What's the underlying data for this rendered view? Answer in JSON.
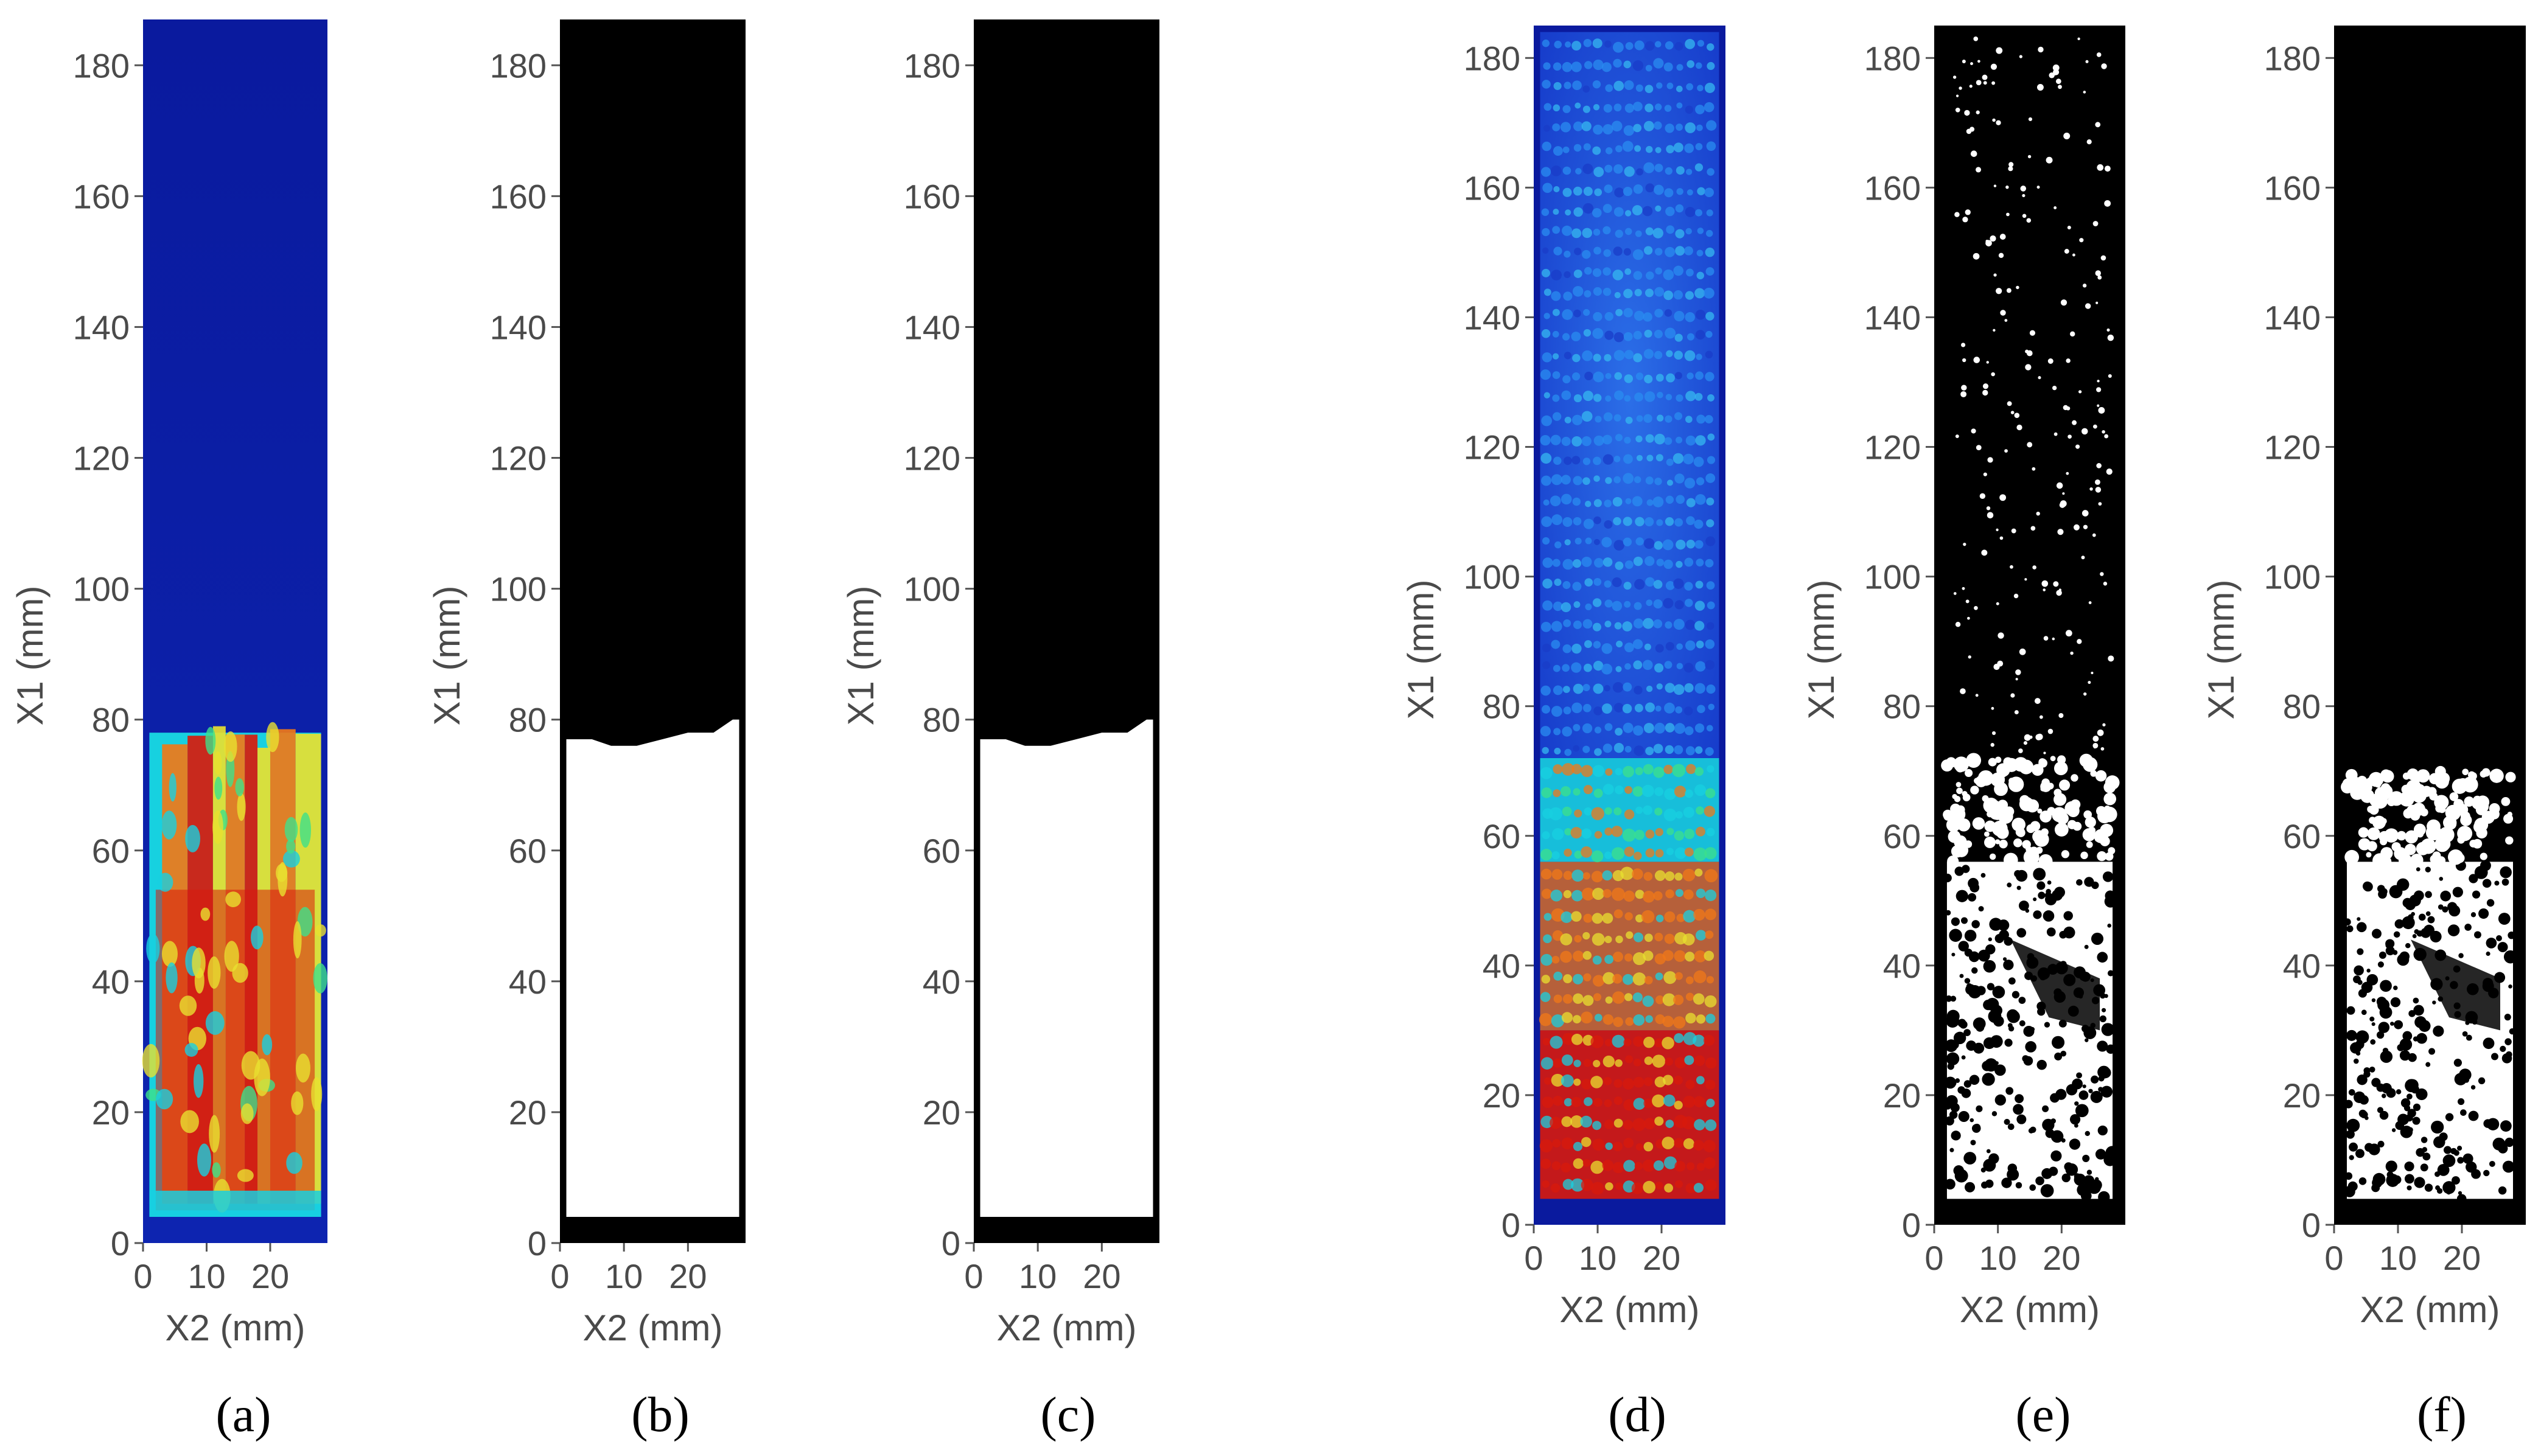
{
  "figure": {
    "panels": [
      {
        "id": "a",
        "caption": "(a)",
        "style": "heatmap"
      },
      {
        "id": "b",
        "caption": "(b)",
        "style": "binary"
      },
      {
        "id": "c",
        "caption": "(c)",
        "style": "binary"
      },
      {
        "id": "d",
        "caption": "(d)",
        "style": "heatmap"
      },
      {
        "id": "e",
        "caption": "(e)",
        "style": "binary"
      },
      {
        "id": "f",
        "caption": "(f)",
        "style": "binary"
      }
    ],
    "colors": {
      "background_blue": "#0a1a9e",
      "blue_mid": "#1f54e0",
      "cyan": "#18d0e0",
      "green": "#3ee08a",
      "yellow": "#e8e030",
      "orange": "#f07818",
      "red": "#d81a0c",
      "binary_bg": "#000000",
      "binary_fg": "#ffffff",
      "axis_text": "#4a4a4a"
    }
  },
  "chart_data": [
    {
      "type": "heatmap",
      "panel": "(a)",
      "title": "",
      "xlabel": "X2 (mm)",
      "ylabel": "X1 (mm)",
      "xlim": [
        0,
        29
      ],
      "ylim": [
        0,
        187
      ],
      "xticks": [
        0,
        10,
        20
      ],
      "yticks": [
        0,
        20,
        40,
        60,
        80,
        100,
        120,
        140,
        160,
        180
      ],
      "xtick_labels": [
        "0",
        "10",
        "20"
      ],
      "ytick_labels": [
        "0",
        "20",
        "40",
        "60",
        "80",
        "100",
        "120",
        "140",
        "160",
        "180"
      ],
      "high_region": {
        "x1_from": 4,
        "x1_to": 78,
        "x2_from": 1,
        "x2_to": 28
      },
      "stripes": [
        {
          "x2": [
            1,
            3
          ],
          "color": "cyan"
        },
        {
          "x2": [
            3,
            7
          ],
          "color": "orange"
        },
        {
          "x2": [
            7,
            11
          ],
          "color": "red"
        },
        {
          "x2": [
            11,
            13
          ],
          "color": "yellow"
        },
        {
          "x2": [
            13,
            16
          ],
          "color": "orange"
        },
        {
          "x2": [
            16,
            18
          ],
          "color": "red"
        },
        {
          "x2": [
            18,
            20
          ],
          "color": "yellow"
        },
        {
          "x2": [
            20,
            24
          ],
          "color": "orange"
        },
        {
          "x2": [
            24,
            28
          ],
          "color": "yellow"
        }
      ],
      "red_band": {
        "x1_from": 5,
        "x1_to": 54
      }
    },
    {
      "type": "heatmap",
      "panel": "(b)",
      "title": "",
      "xlabel": "X2 (mm)",
      "ylabel": "X1 (mm)",
      "xlim": [
        0,
        29
      ],
      "ylim": [
        0,
        187
      ],
      "xticks": [
        0,
        10,
        20
      ],
      "yticks": [
        0,
        20,
        40,
        60,
        80,
        100,
        120,
        140,
        160,
        180
      ],
      "xtick_labels": [
        "0",
        "10",
        "20"
      ],
      "ytick_labels": [
        "0",
        "20",
        "40",
        "60",
        "80",
        "100",
        "120",
        "140",
        "160",
        "180"
      ],
      "region": {
        "x2_from": 1,
        "x2_to": 28,
        "x1_from": 4,
        "boundary": [
          [
            1,
            77
          ],
          [
            5,
            77
          ],
          [
            8,
            76
          ],
          [
            12,
            76
          ],
          [
            16,
            77
          ],
          [
            20,
            78
          ],
          [
            24,
            78
          ],
          [
            27,
            80
          ],
          [
            28,
            80
          ]
        ]
      }
    },
    {
      "type": "heatmap",
      "panel": "(c)",
      "title": "",
      "xlabel": "X2 (mm)",
      "ylabel": "X1 (mm)",
      "xlim": [
        0,
        29
      ],
      "ylim": [
        0,
        187
      ],
      "xticks": [
        0,
        10,
        20
      ],
      "yticks": [
        0,
        20,
        40,
        60,
        80,
        100,
        120,
        140,
        160,
        180
      ],
      "xtick_labels": [
        "0",
        "10",
        "20"
      ],
      "ytick_labels": [
        "0",
        "20",
        "40",
        "60",
        "80",
        "100",
        "120",
        "140",
        "160",
        "180"
      ],
      "region": {
        "x2_from": 1,
        "x2_to": 28,
        "x1_from": 4,
        "boundary": [
          [
            1,
            77
          ],
          [
            5,
            77
          ],
          [
            8,
            76
          ],
          [
            12,
            76
          ],
          [
            16,
            77
          ],
          [
            20,
            78
          ],
          [
            24,
            78
          ],
          [
            27,
            80
          ],
          [
            28,
            80
          ]
        ]
      }
    },
    {
      "type": "heatmap",
      "panel": "(d)",
      "title": "",
      "xlabel": "X2 (mm)",
      "ylabel": "X1 (mm)",
      "xlim": [
        0,
        30
      ],
      "ylim": [
        0,
        185
      ],
      "xticks": [
        0,
        10,
        20
      ],
      "yticks": [
        0,
        20,
        40,
        60,
        80,
        100,
        120,
        140,
        160,
        180
      ],
      "xtick_labels": [
        "0",
        "10",
        "20"
      ],
      "ytick_labels": [
        "0",
        "20",
        "40",
        "60",
        "80",
        "100",
        "120",
        "140",
        "160",
        "180"
      ],
      "bands": [
        {
          "x1": [
            4,
            30
          ],
          "color": "red"
        },
        {
          "x1": [
            30,
            56
          ],
          "color": "orange"
        },
        {
          "x1": [
            56,
            72
          ],
          "color": "cyan"
        },
        {
          "x1": [
            72,
            184
          ],
          "color": "blue_mid"
        }
      ]
    },
    {
      "type": "heatmap",
      "panel": "(e)",
      "title": "",
      "xlabel": "X2 (mm)",
      "ylabel": "X1 (mm)",
      "xlim": [
        0,
        30
      ],
      "ylim": [
        0,
        185
      ],
      "xticks": [
        0,
        10,
        20
      ],
      "yticks": [
        0,
        20,
        40,
        60,
        80,
        100,
        120,
        140,
        160,
        180
      ],
      "xtick_labels": [
        "0",
        "10",
        "20"
      ],
      "ytick_labels": [
        "0",
        "20",
        "40",
        "60",
        "80",
        "100",
        "120",
        "140",
        "160",
        "180"
      ],
      "solid_region": {
        "x2_from": 2,
        "x2_to": 28,
        "x1_from": 4,
        "x1_to": 56
      },
      "speckle_region": {
        "x1_from": 56,
        "x1_to": 72
      },
      "sparse_dots_up_to": 184
    },
    {
      "type": "heatmap",
      "panel": "(f)",
      "title": "",
      "xlabel": "X2 (mm)",
      "ylabel": "X1 (mm)",
      "xlim": [
        0,
        30
      ],
      "ylim": [
        0,
        185
      ],
      "xticks": [
        0,
        10,
        20
      ],
      "yticks": [
        0,
        20,
        40,
        60,
        80,
        100,
        120,
        140,
        160,
        180
      ],
      "xtick_labels": [
        "0",
        "10",
        "20"
      ],
      "ytick_labels": [
        "0",
        "20",
        "40",
        "60",
        "80",
        "100",
        "120",
        "140",
        "160",
        "180"
      ],
      "solid_region": {
        "x2_from": 2,
        "x2_to": 28,
        "x1_from": 4,
        "x1_to": 56
      },
      "speckle_region": {
        "x1_from": 56,
        "x1_to": 70
      },
      "sparse_dots_up_to": 0
    }
  ]
}
